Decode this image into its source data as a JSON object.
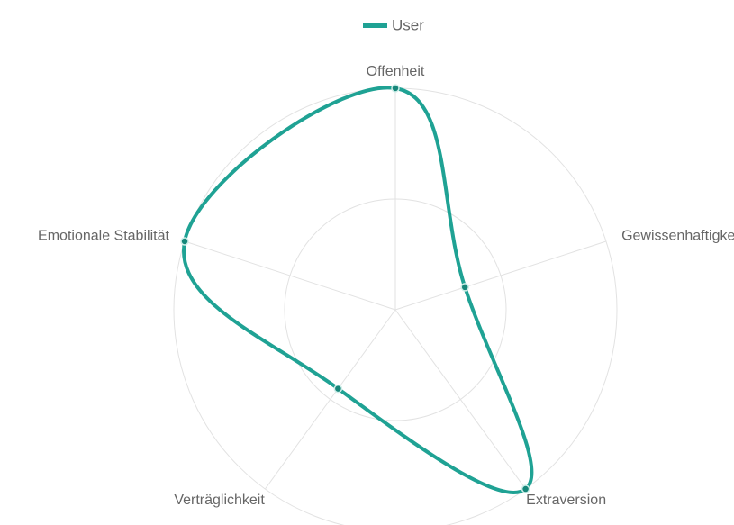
{
  "chart_data": {
    "type": "radar",
    "categories": [
      "Offenheit",
      "Gewissenhaftigkeit",
      "Extraversion",
      "Verträglichkeit",
      "Emotionale Stabilität"
    ],
    "series": [
      {
        "name": "User",
        "color": "#1fa294",
        "values": [
          100,
          33,
          100,
          44,
          100
        ]
      }
    ],
    "ylim": [
      0,
      100
    ],
    "yticks": [
      0,
      50,
      100
    ],
    "grid": true,
    "legend": "top"
  }
}
